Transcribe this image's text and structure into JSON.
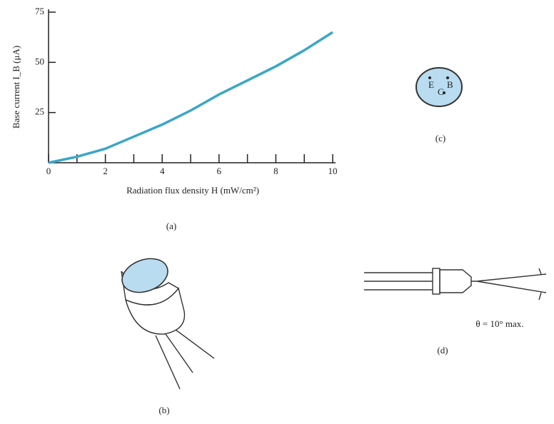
{
  "chart_data": {
    "type": "line",
    "x_label": "Radiation flux density H (mW/cm²)",
    "y_label": "Base current I_B (μA)",
    "caption": "(a)",
    "x": [
      0,
      1,
      2,
      3,
      4,
      5,
      6,
      7,
      8,
      9,
      10
    ],
    "series": [
      {
        "color": "#3aa6c8",
        "values": [
          0,
          3,
          7,
          13,
          19,
          26,
          34,
          41,
          48,
          56,
          65
        ]
      }
    ],
    "xlim": [
      0,
      10
    ],
    "ylim": [
      0,
      75
    ],
    "xticks": [
      0,
      2,
      4,
      6,
      8,
      10
    ],
    "xminorticks": [
      1,
      3,
      5,
      7,
      9
    ],
    "yticks": [
      25,
      50,
      75
    ]
  },
  "figure_b": {
    "caption": "(b)"
  },
  "figure_c": {
    "caption": "(c)",
    "pins": [
      "E",
      "C",
      "B"
    ]
  },
  "figure_d": {
    "caption": "(d)",
    "annotation": "θ = 10° max."
  }
}
